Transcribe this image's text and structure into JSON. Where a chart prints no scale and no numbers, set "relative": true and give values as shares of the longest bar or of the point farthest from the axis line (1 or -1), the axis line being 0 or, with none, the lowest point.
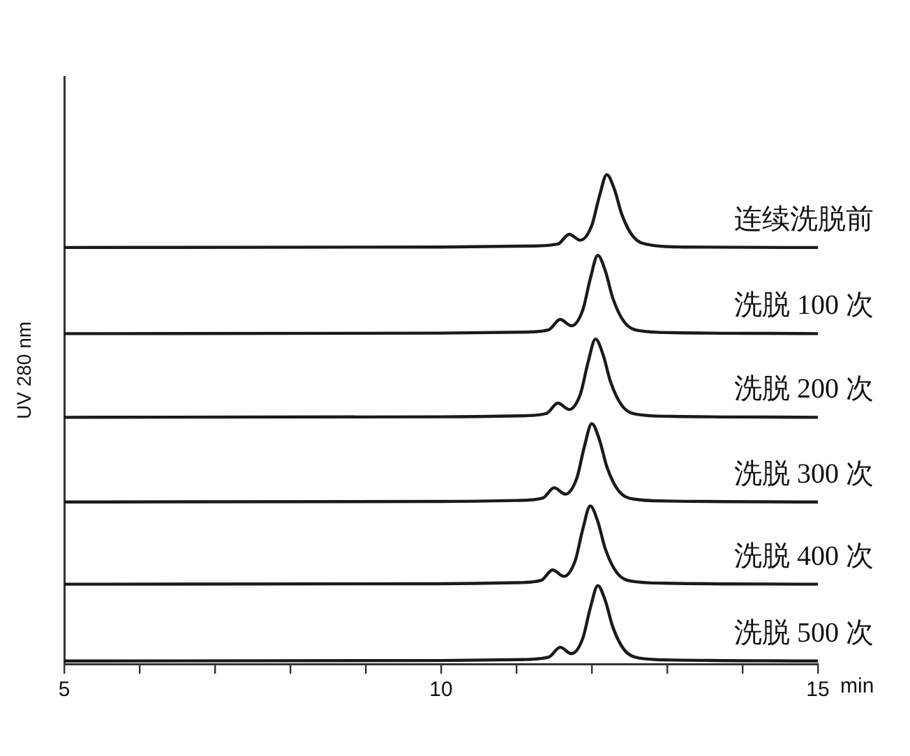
{
  "chart_data": {
    "type": "line",
    "relative": true,
    "xlabel": "min",
    "ylabel": "UV 280 nm",
    "xlim": [
      5,
      15
    ],
    "xticks": [
      5,
      {
        "value": 6,
        "label": null
      },
      {
        "value": 7,
        "label": null
      },
      {
        "value": 8,
        "label": null
      },
      {
        "value": 9,
        "label": null
      },
      10,
      {
        "value": 11,
        "label": null
      },
      {
        "value": 12,
        "label": null
      },
      {
        "value": 13,
        "label": null
      },
      {
        "value": 14,
        "label": null
      },
      15
    ],
    "grid": false,
    "legend": false,
    "marker": "none",
    "line_style": "solid",
    "series": [
      {
        "name": "连续洗脱前",
        "color": "#1a1a1a",
        "x": [
          5,
          10,
          11.2,
          11.55,
          11.7,
          11.85,
          12.0,
          12.1,
          12.2,
          12.3,
          12.4,
          12.55,
          12.75,
          13.2,
          15
        ],
        "values": [
          0.851,
          0.852,
          0.854,
          0.858,
          0.878,
          0.866,
          0.896,
          0.955,
          1.0,
          0.97,
          0.918,
          0.873,
          0.857,
          0.852,
          0.851
        ]
      },
      {
        "name": "洗脱 100 次",
        "color": "#1a1a1a",
        "x": [
          5,
          10,
          11.08,
          11.43,
          11.58,
          11.73,
          11.88,
          11.98,
          12.08,
          12.18,
          12.28,
          12.43,
          12.63,
          13.08,
          15
        ],
        "values": [
          0.675,
          0.676,
          0.678,
          0.683,
          0.704,
          0.691,
          0.723,
          0.787,
          0.835,
          0.803,
          0.747,
          0.699,
          0.681,
          0.677,
          0.675
        ]
      },
      {
        "name": "洗脱 200 次",
        "color": "#1a1a1a",
        "x": [
          5,
          10,
          11.05,
          11.4,
          11.55,
          11.7,
          11.85,
          11.95,
          12.05,
          12.15,
          12.25,
          12.4,
          12.6,
          13.05,
          15
        ],
        "values": [
          0.504,
          0.505,
          0.507,
          0.512,
          0.533,
          0.52,
          0.552,
          0.616,
          0.664,
          0.632,
          0.576,
          0.528,
          0.51,
          0.506,
          0.504
        ]
      },
      {
        "name": "洗脱 300 次",
        "color": "#1a1a1a",
        "x": [
          5,
          10,
          11,
          11.35,
          11.5,
          11.65,
          11.8,
          11.9,
          12,
          12.1,
          12.2,
          12.35,
          12.55,
          13,
          15
        ],
        "values": [
          0.331,
          0.332,
          0.334,
          0.339,
          0.36,
          0.347,
          0.379,
          0.443,
          0.491,
          0.459,
          0.403,
          0.355,
          0.337,
          0.333,
          0.331
        ]
      },
      {
        "name": "洗脱 400 次",
        "color": "#1a1a1a",
        "x": [
          5,
          10,
          10.98,
          11.33,
          11.48,
          11.63,
          11.78,
          11.88,
          11.98,
          12.08,
          12.18,
          12.33,
          12.53,
          12.98,
          15
        ],
        "values": [
          0.163,
          0.164,
          0.166,
          0.171,
          0.192,
          0.179,
          0.211,
          0.275,
          0.323,
          0.291,
          0.235,
          0.187,
          0.169,
          0.165,
          0.163
        ]
      },
      {
        "name": "洗脱 500 次",
        "color": "#1a1a1a",
        "x": [
          5,
          10,
          11.08,
          11.43,
          11.58,
          11.73,
          11.88,
          11.98,
          12.08,
          12.18,
          12.28,
          12.43,
          12.63,
          13.08,
          15
        ],
        "values": [
          0.006,
          0.007,
          0.009,
          0.014,
          0.034,
          0.021,
          0.052,
          0.114,
          0.16,
          0.129,
          0.075,
          0.029,
          0.012,
          0.008,
          0.006
        ]
      }
    ]
  }
}
